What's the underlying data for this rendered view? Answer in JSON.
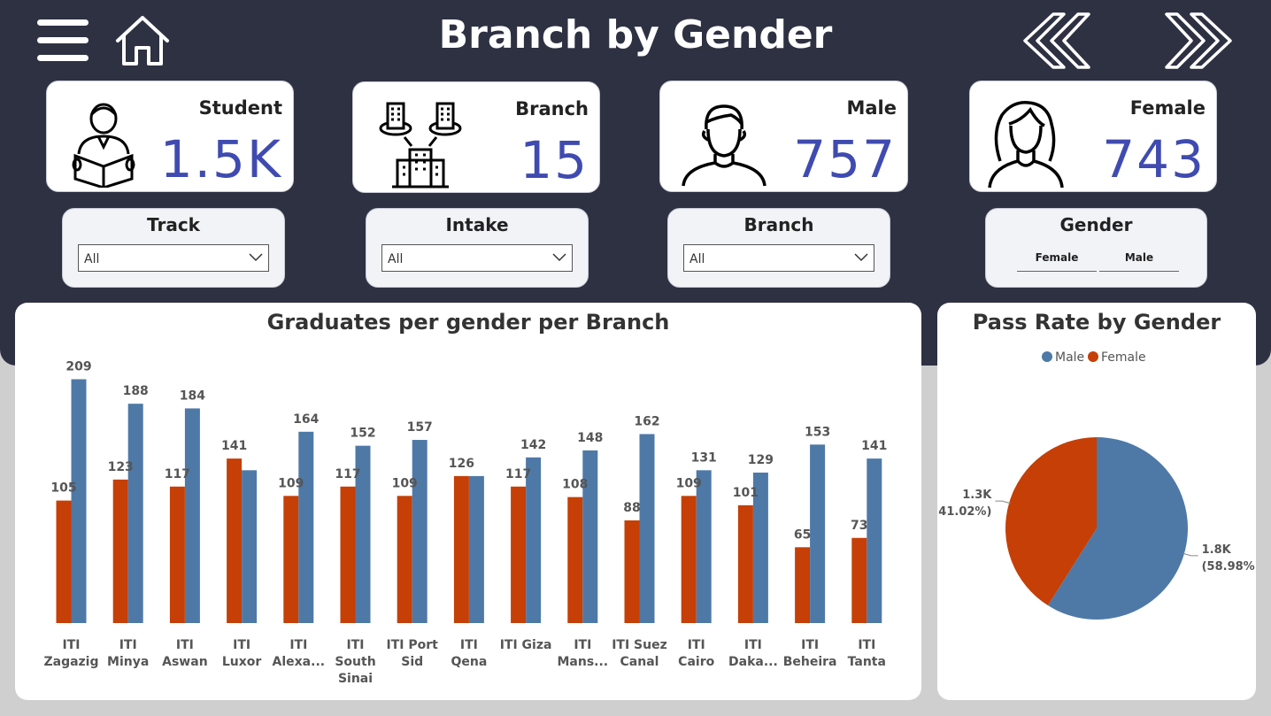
{
  "header": {
    "title": "Branch by Gender"
  },
  "kpis": [
    {
      "label": "Student",
      "value": "1.5K",
      "icon": "student-reading-icon"
    },
    {
      "label": "Branch",
      "value": "15",
      "icon": "buildings-icon"
    },
    {
      "label": "Male",
      "value": "757",
      "icon": "male-person-icon"
    },
    {
      "label": "Female",
      "value": "743",
      "icon": "female-person-icon"
    }
  ],
  "slicers": {
    "track": {
      "title": "Track",
      "value": "All"
    },
    "intake": {
      "title": "Intake",
      "value": "All"
    },
    "branch": {
      "title": "Branch",
      "value": "All"
    },
    "gender": {
      "title": "Gender",
      "options": [
        "Female",
        "Male"
      ]
    }
  },
  "colors": {
    "male": "#4e79a7",
    "female": "#c53f06",
    "header_bg": "#2e3142",
    "kpi_value": "#3f4bb0"
  },
  "chart_data": [
    {
      "type": "bar",
      "title": "Graduates per gender per Branch",
      "categories": [
        [
          "ITI",
          "Zagazig"
        ],
        [
          "ITI",
          "Minya"
        ],
        [
          "ITI",
          "Aswan"
        ],
        [
          "ITI",
          "Luxor"
        ],
        [
          "ITI",
          "Alexa..."
        ],
        [
          "ITI",
          "South",
          "Sinai"
        ],
        [
          "ITI Port",
          "Sid"
        ],
        [
          "ITI",
          "Qena"
        ],
        [
          "ITI Giza"
        ],
        [
          "ITI",
          "Mans..."
        ],
        [
          "ITI Suez",
          "Canal"
        ],
        [
          "ITI",
          "Cairo"
        ],
        [
          "ITI",
          "Daka..."
        ],
        [
          "ITI",
          "Beheira"
        ],
        [
          "ITI",
          "Tanta"
        ]
      ],
      "series": [
        {
          "name": "Female",
          "values": [
            105,
            123,
            117,
            141,
            109,
            117,
            109,
            126,
            117,
            108,
            88,
            109,
            101,
            65,
            73
          ]
        },
        {
          "name": "Male",
          "values": [
            209,
            188,
            184,
            131,
            164,
            152,
            157,
            126,
            142,
            148,
            162,
            131,
            129,
            153,
            141
          ]
        }
      ],
      "data_labels": [
        [
          "105",
          "123",
          "117",
          "141",
          "109",
          "117",
          "109",
          "126",
          "117",
          "108",
          "88",
          "109",
          "101",
          "65",
          "73"
        ],
        [
          "209",
          "188",
          "184",
          "",
          "164",
          "152",
          "157",
          "",
          "142",
          "148",
          "162",
          "131",
          "129",
          "153",
          "141"
        ]
      ],
      "ylim": [
        0,
        220
      ],
      "grid": false,
      "legend": "none"
    },
    {
      "type": "pie",
      "title": "Pass Rate by Gender",
      "legend": "top",
      "legend_items": [
        "Male",
        "Female"
      ],
      "slices": [
        {
          "name": "Male",
          "value": 1.8,
          "percent": 58.98,
          "label": "1.8K",
          "pct_label": "(58.98%)"
        },
        {
          "name": "Female",
          "value": 1.3,
          "percent": 41.02,
          "label": "1.3K",
          "pct_label": "(41.02%)"
        }
      ]
    }
  ]
}
